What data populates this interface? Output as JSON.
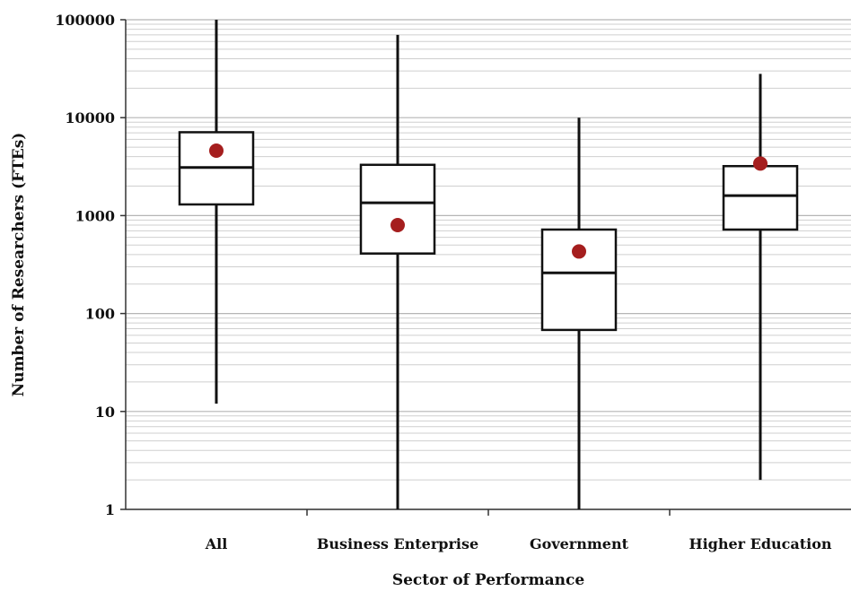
{
  "chart_data": {
    "type": "box",
    "title": "",
    "xlabel": "Sector of Performance",
    "ylabel": "Number of Researchers (FTEs)",
    "yscale": "log",
    "ylim": [
      1,
      100000
    ],
    "ytick_values": [
      1,
      10,
      100,
      1000,
      10000,
      100000
    ],
    "ytick_labels": [
      "1",
      "10",
      "100",
      "1000",
      "10000",
      "100000"
    ],
    "grid": "horizontal (major and minor)",
    "categories": [
      "All",
      "Business Enterprise",
      "Government",
      "Higher Education"
    ],
    "boxes": [
      {
        "category": "All",
        "min": 12,
        "q1": 1300,
        "median": 3100,
        "q3": 7100,
        "max": 100000,
        "mean": 4600
      },
      {
        "category": "Business Enterprise",
        "min": 1,
        "q1": 410,
        "median": 1350,
        "q3": 3300,
        "max": 70000,
        "mean": 800
      },
      {
        "category": "Government",
        "min": 1,
        "q1": 68,
        "median": 260,
        "q3": 720,
        "max": 10000,
        "mean": 430
      },
      {
        "category": "Higher Education",
        "min": 2,
        "q1": 720,
        "median": 1600,
        "q3": 3200,
        "max": 28000,
        "mean": 3400
      }
    ],
    "colors": {
      "mean_marker": "#a51e1e",
      "box_stroke": "#111111",
      "box_fill": "#ffffff",
      "grid": "#cfcfcf"
    }
  }
}
